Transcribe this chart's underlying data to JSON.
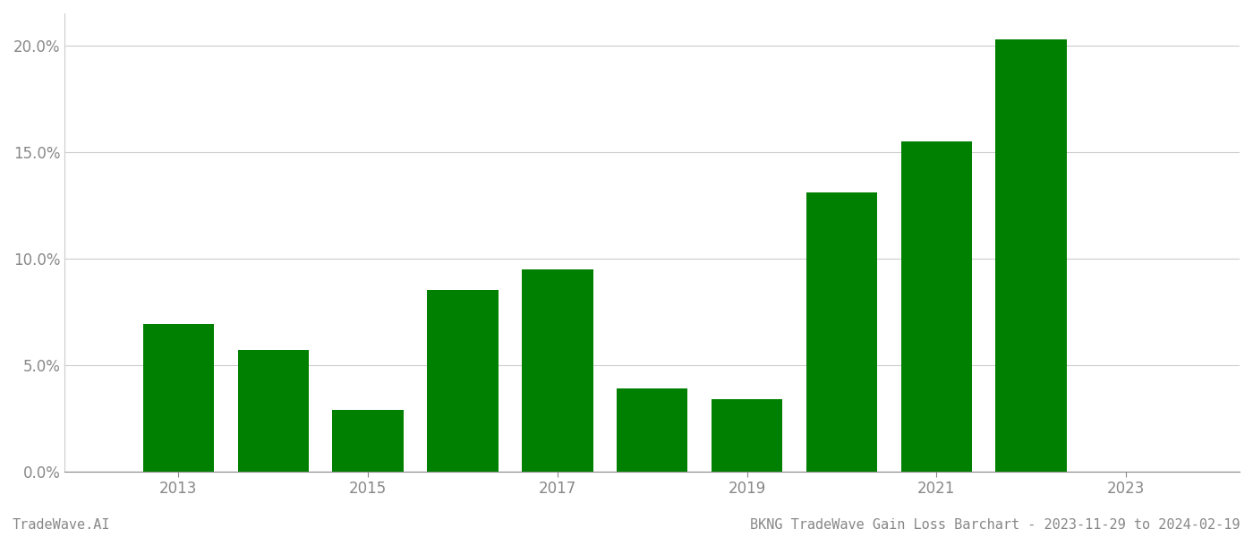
{
  "years": [
    2013,
    2014,
    2015,
    2016,
    2017,
    2018,
    2019,
    2020,
    2021,
    2022
  ],
  "values": [
    0.069,
    0.057,
    0.029,
    0.085,
    0.095,
    0.039,
    0.034,
    0.131,
    0.155,
    0.203
  ],
  "bar_color": "#008000",
  "background_color": "#ffffff",
  "grid_color": "#cccccc",
  "tick_label_color": "#888888",
  "ylim": [
    0,
    0.215
  ],
  "yticks": [
    0.0,
    0.05,
    0.1,
    0.15,
    0.2
  ],
  "ytick_labels": [
    "0.0%",
    "5.0%",
    "10.0%",
    "15.0%",
    "20.0%"
  ],
  "xtick_labels": [
    "2013",
    "2015",
    "2017",
    "2019",
    "2021",
    "2023"
  ],
  "xtick_positions": [
    2013,
    2015,
    2017,
    2019,
    2021,
    2023
  ],
  "footer_left": "TradeWave.AI",
  "footer_right": "BKNG TradeWave Gain Loss Barchart - 2023-11-29 to 2024-02-19",
  "footer_color": "#888888",
  "footer_fontsize": 11,
  "bar_width": 0.75,
  "xlim_left": 2011.8,
  "xlim_right": 2024.2
}
